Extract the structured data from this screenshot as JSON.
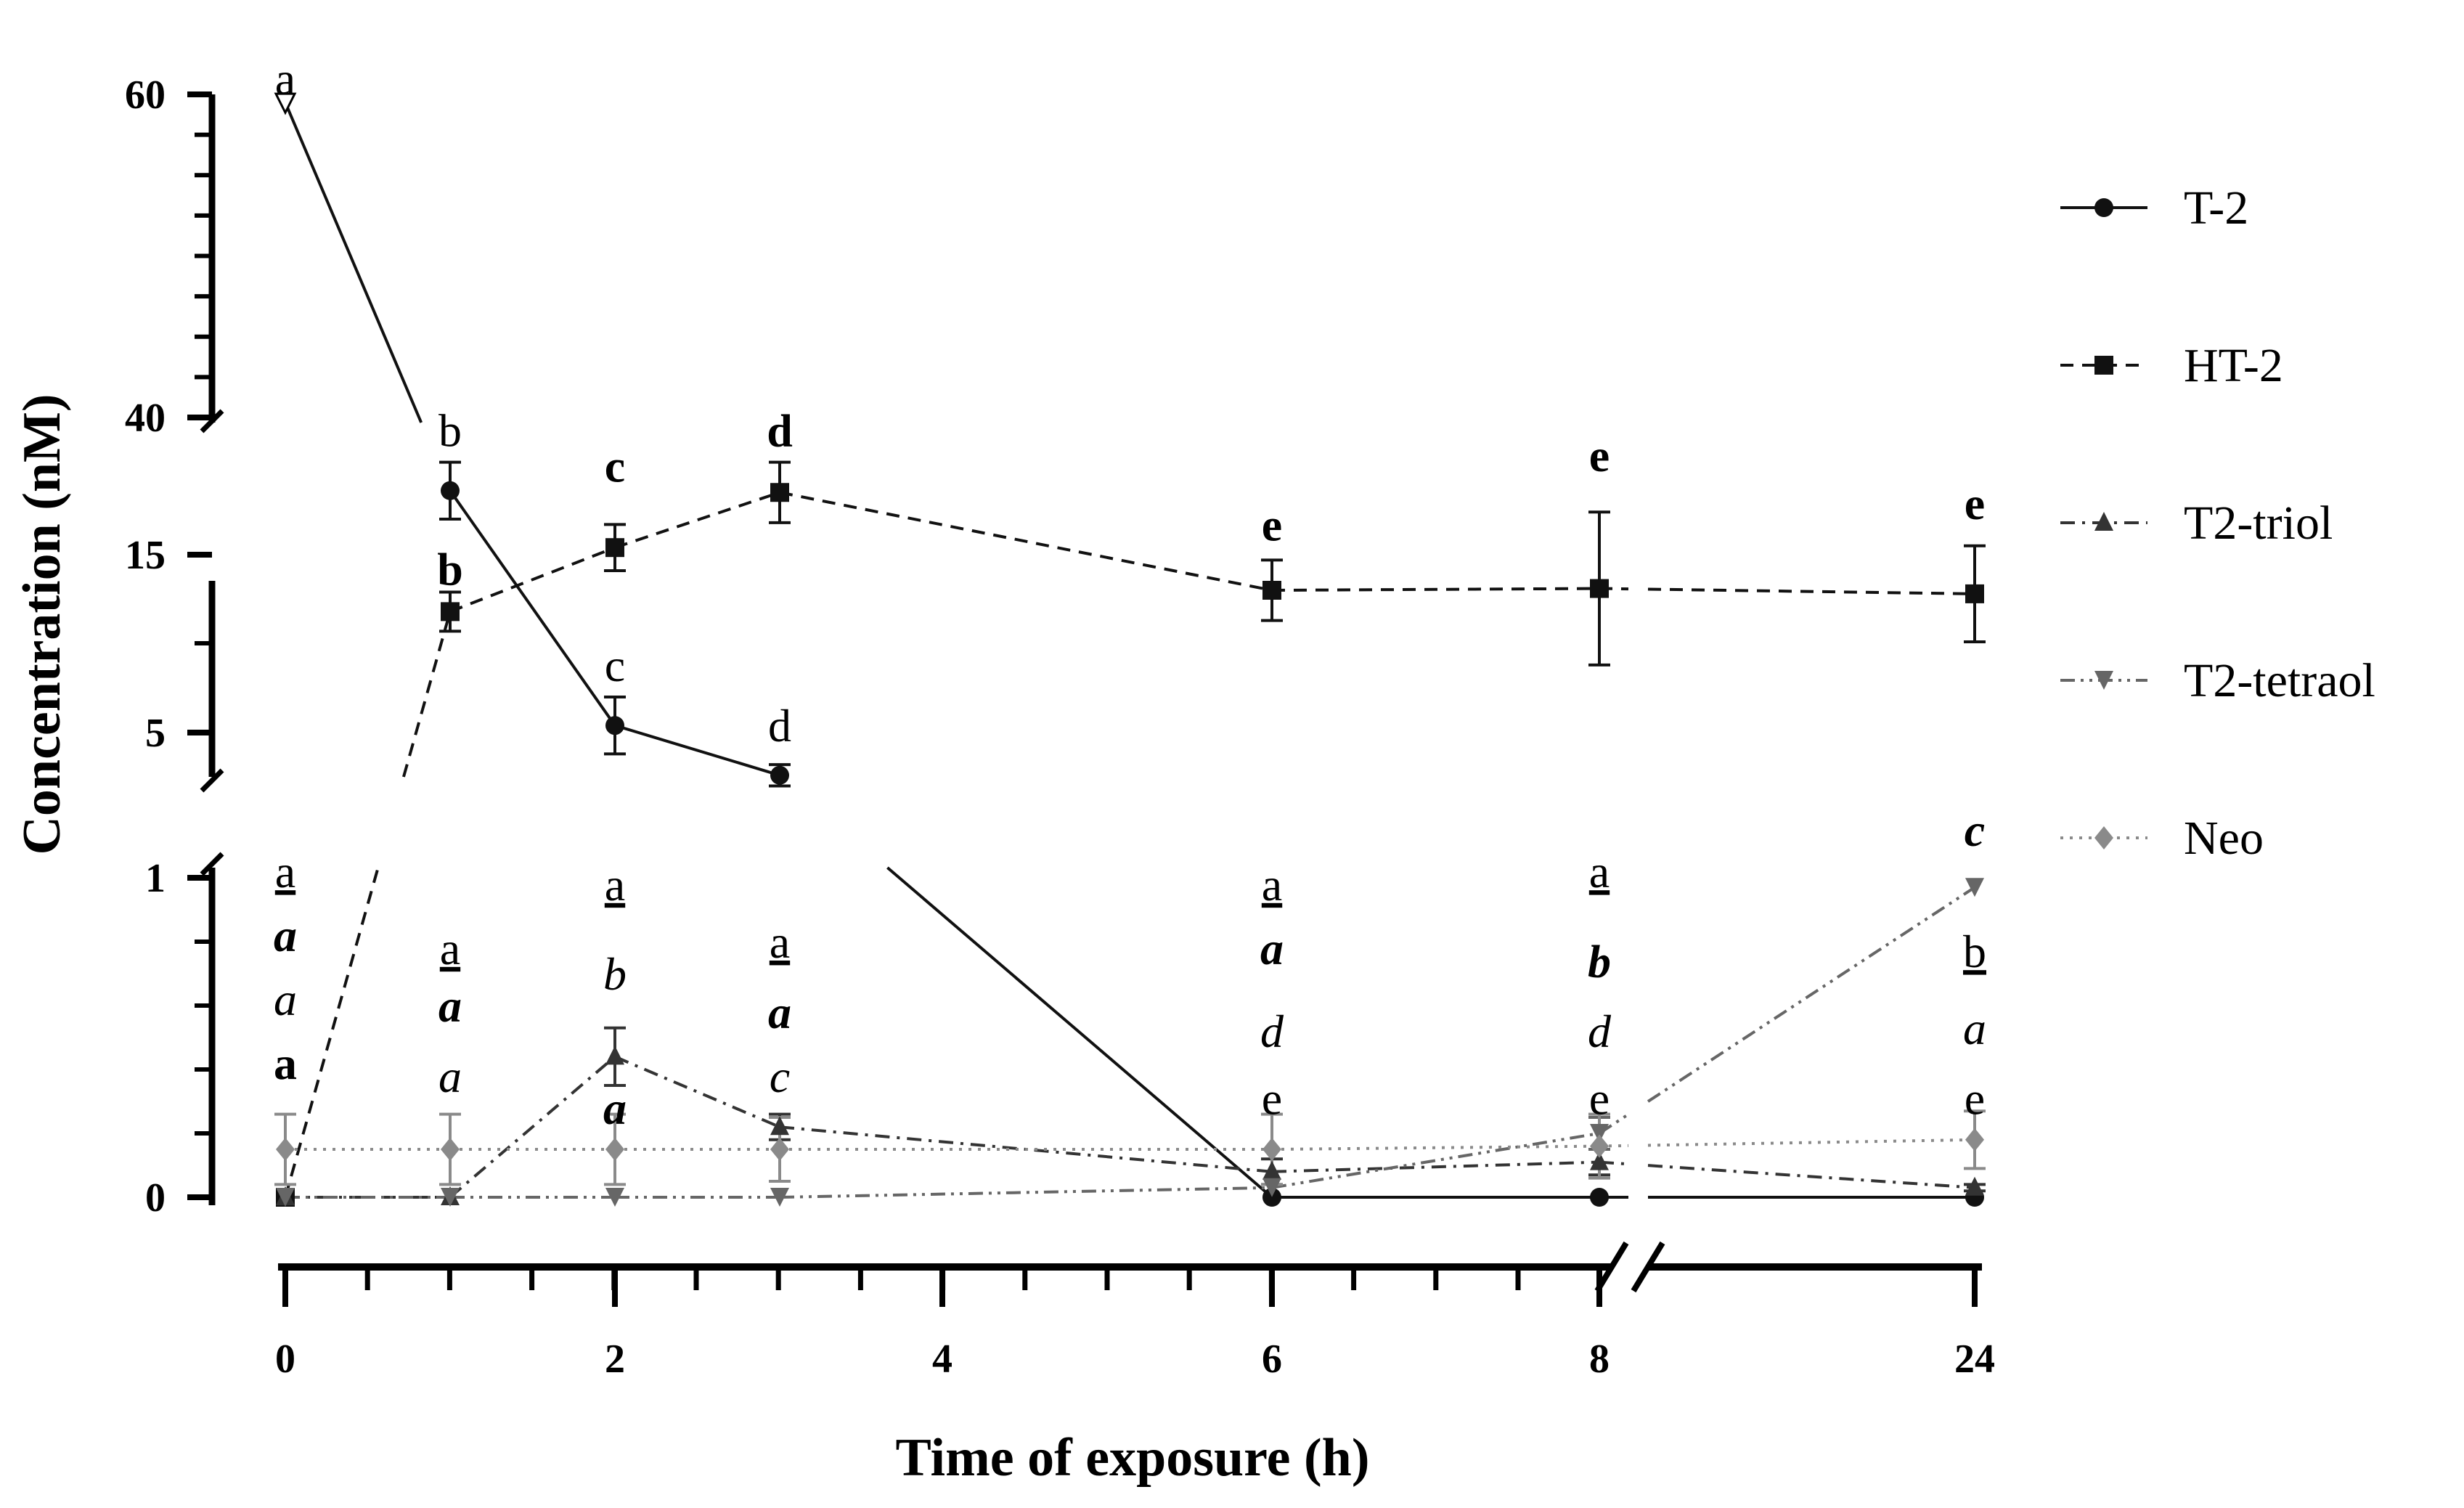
{
  "chart_data": {
    "type": "line",
    "xlabel": "Time of exposure (h)",
    "ylabel": "Concentration (nM)",
    "x_ticks": [
      "0",
      "2",
      "4",
      "6",
      "8",
      "24"
    ],
    "y_ticks": {
      "top": [
        "40",
        "60"
      ],
      "middle": [
        "5",
        "15"
      ],
      "bottom": [
        "0",
        "1"
      ]
    },
    "x_break": "between 8 and 24",
    "y_breaks": [
      "between 1 and 5 nM",
      "between 15 and 40 nM"
    ],
    "grid": false,
    "legend_position": "right",
    "series": [
      {
        "name": "T-2",
        "marker": "circle",
        "line": "solid",
        "color": "#111111",
        "x": [
          0,
          1,
          2,
          3,
          6,
          8,
          24
        ],
        "y": [
          59.5,
          18.6,
          5.4,
          2.6,
          0,
          0,
          0
        ],
        "err": [
          0,
          1.6,
          1.6,
          0.6,
          0,
          0,
          0
        ]
      },
      {
        "name": "HT-2",
        "marker": "square",
        "line": "dashed",
        "color": "#111111",
        "x": [
          0,
          1,
          2,
          3,
          6,
          8,
          24
        ],
        "y": [
          0,
          11.8,
          15.4,
          18.5,
          13.0,
          13.1,
          12.8
        ],
        "err": [
          0,
          1.1,
          1.3,
          1.7,
          1.7,
          4.3,
          2.7
        ]
      },
      {
        "name": "T2-triol",
        "marker": "triangle-up",
        "line": "dash-dot",
        "color": "#333333",
        "x": [
          0,
          1,
          2,
          3,
          6,
          8,
          24
        ],
        "y": [
          0,
          0,
          0.44,
          0.22,
          0.08,
          0.11,
          0.03
        ],
        "err": [
          0,
          0,
          0.09,
          0.04,
          0.04,
          0.04,
          0.01
        ]
      },
      {
        "name": "T2-tetraol",
        "marker": "triangle-down",
        "line": "dash-dot-dot",
        "color": "#666666",
        "x": [
          0,
          1,
          2,
          3,
          6,
          8,
          24
        ],
        "y": [
          0,
          0,
          0,
          0,
          0.03,
          0.2,
          0.97
        ],
        "err": [
          0,
          0,
          0,
          0,
          0,
          0.05,
          0
        ]
      },
      {
        "name": "Neo",
        "marker": "diamond",
        "line": "dotted",
        "color": "#8a8a8a",
        "x": [
          0,
          1,
          2,
          3,
          6,
          8,
          24
        ],
        "y": [
          0.15,
          0.15,
          0.15,
          0.15,
          0.15,
          0.16,
          0.18
        ],
        "err": [
          0.11,
          0.11,
          0.11,
          0.1,
          0.11,
          0.1,
          0.09
        ]
      }
    ],
    "annotations": [
      {
        "x": 0,
        "y_nM": 61,
        "text": "a",
        "style": "normal"
      },
      {
        "x": 1,
        "y_nM": 22,
        "text": "b",
        "style": "normal"
      },
      {
        "x": 2,
        "y_nM": 20,
        "text": "c",
        "style": "bold"
      },
      {
        "x": 3,
        "y_nM": 22,
        "text": "d",
        "style": "bold"
      },
      {
        "x": 1,
        "y_nM": 14.2,
        "text": "b",
        "style": "bold"
      },
      {
        "x": 2,
        "y_nM": 8.8,
        "text": "c",
        "style": "normal"
      },
      {
        "x": 3,
        "y_nM": 5.4,
        "text": "d",
        "style": "normal"
      },
      {
        "x": 6,
        "y_nM": 16.7,
        "text": "e",
        "style": "bold"
      },
      {
        "x": 8,
        "y_nM": 20.6,
        "text": "e",
        "style": "bold"
      },
      {
        "x": 24,
        "y_nM": 17.9,
        "text": "e",
        "style": "bold"
      },
      {
        "x": 0,
        "y_nM": 1.02,
        "text": "a",
        "style": "underline"
      },
      {
        "x": 0,
        "y_nM": 0.82,
        "text": "a",
        "style": "bold-italic"
      },
      {
        "x": 0,
        "y_nM": 0.62,
        "text": "a",
        "style": "italic"
      },
      {
        "x": 0,
        "y_nM": 0.42,
        "text": "a",
        "style": "bold"
      },
      {
        "x": 1,
        "y_nM": 0.78,
        "text": "a",
        "style": "underline"
      },
      {
        "x": 1,
        "y_nM": 0.6,
        "text": "a",
        "style": "bold-italic"
      },
      {
        "x": 1,
        "y_nM": 0.38,
        "text": "a",
        "style": "italic"
      },
      {
        "x": 2,
        "y_nM": 0.98,
        "text": "a",
        "style": "underline"
      },
      {
        "x": 2,
        "y_nM": 0.7,
        "text": "b",
        "style": "italic"
      },
      {
        "x": 2,
        "y_nM": 0.28,
        "text": "a",
        "style": "bold-italic"
      },
      {
        "x": 3,
        "y_nM": 0.8,
        "text": "a",
        "style": "underline"
      },
      {
        "x": 3,
        "y_nM": 0.58,
        "text": "a",
        "style": "bold-italic"
      },
      {
        "x": 3,
        "y_nM": 0.38,
        "text": "c",
        "style": "italic"
      },
      {
        "x": 6,
        "y_nM": 0.98,
        "text": "a",
        "style": "underline"
      },
      {
        "x": 6,
        "y_nM": 0.78,
        "text": "a",
        "style": "bold-italic"
      },
      {
        "x": 6,
        "y_nM": 0.52,
        "text": "d",
        "style": "italic"
      },
      {
        "x": 6,
        "y_nM": 0.31,
        "text": "e",
        "style": "normal"
      },
      {
        "x": 8,
        "y_nM": 1.02,
        "text": "a",
        "style": "underline"
      },
      {
        "x": 8,
        "y_nM": 0.74,
        "text": "b",
        "style": "bold-italic"
      },
      {
        "x": 8,
        "y_nM": 0.52,
        "text": "d",
        "style": "italic"
      },
      {
        "x": 8,
        "y_nM": 0.31,
        "text": "e",
        "style": "normal"
      },
      {
        "x": 24,
        "y_nM": 1.15,
        "text": "c",
        "style": "bold-italic"
      },
      {
        "x": 24,
        "y_nM": 0.77,
        "text": "b",
        "style": "underline"
      },
      {
        "x": 24,
        "y_nM": 0.53,
        "text": "a",
        "style": "italic"
      },
      {
        "x": 24,
        "y_nM": 0.31,
        "text": "e",
        "style": "normal"
      }
    ]
  }
}
